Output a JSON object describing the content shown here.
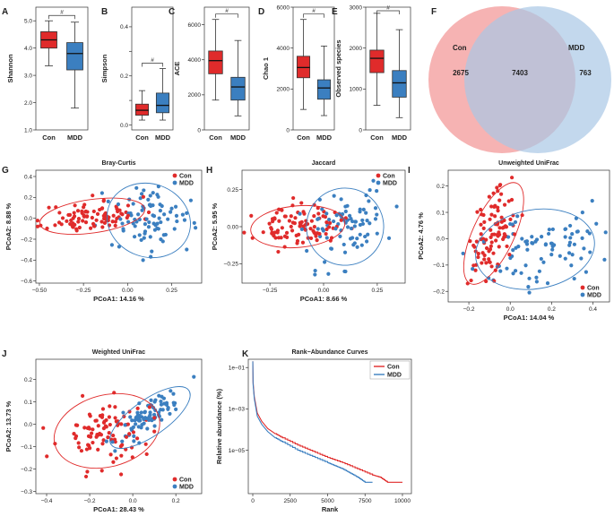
{
  "colors": {
    "con": "#e02b2b",
    "mdd": "#3b7fc0",
    "con_light": "#f4a6a6",
    "mdd_light": "#aac8e6",
    "text": "#222222"
  },
  "groups": [
    "Con",
    "MDD"
  ],
  "chart_data": [
    {
      "id": "A",
      "type": "box",
      "label": "A",
      "ylabel": "Shannon",
      "ylim": [
        1.0,
        5.5
      ],
      "yticks": [
        1.0,
        2.0,
        3.0,
        4.0,
        5.0
      ],
      "ytick_labels": [
        "1.0",
        "2.0",
        "3.0",
        "4.0",
        "5.0"
      ],
      "categories": [
        "Con",
        "MDD"
      ],
      "boxes": [
        {
          "group": "Con",
          "min": 3.35,
          "q1": 4.0,
          "median": 4.3,
          "q3": 4.6,
          "max": 5.0
        },
        {
          "group": "MDD",
          "min": 1.8,
          "q1": 3.2,
          "median": 3.8,
          "q3": 4.2,
          "max": 4.95
        }
      ],
      "significance": "#"
    },
    {
      "id": "B",
      "type": "box",
      "label": "B",
      "ylabel": "Simpson",
      "ylim": [
        -0.02,
        0.48
      ],
      "yticks": [
        0.0,
        0.1,
        0.2,
        0.3,
        0.4
      ],
      "ytick_labels": [
        "0.0",
        "",
        "0.2",
        "",
        "0.4"
      ],
      "categories": [
        "Con",
        "MDD"
      ],
      "boxes": [
        {
          "group": "Con",
          "min": 0.02,
          "q1": 0.04,
          "median": 0.06,
          "q3": 0.085,
          "max": 0.14
        },
        {
          "group": "MDD",
          "min": 0.02,
          "q1": 0.05,
          "median": 0.08,
          "q3": 0.13,
          "max": 0.23
        }
      ],
      "significance": "#"
    },
    {
      "id": "C",
      "type": "box",
      "label": "C",
      "ylabel": "ACE",
      "ylim": [
        0,
        7000
      ],
      "yticks": [
        0,
        2000,
        4000,
        6000
      ],
      "ytick_labels": [
        "0",
        "2000",
        "4000",
        "6000"
      ],
      "categories": [
        "Con",
        "MDD"
      ],
      "boxes": [
        {
          "group": "Con",
          "min": 1700,
          "q1": 3200,
          "median": 3950,
          "q3": 4500,
          "max": 6300
        },
        {
          "group": "MDD",
          "min": 800,
          "q1": 1700,
          "median": 2450,
          "q3": 3000,
          "max": 5100
        }
      ],
      "significance": "#"
    },
    {
      "id": "D",
      "type": "box",
      "label": "D",
      "ylabel": "Chao 1",
      "ylim": [
        0,
        6000
      ],
      "yticks": [
        0,
        2000,
        4000,
        6000
      ],
      "ytick_labels": [
        "0",
        "2000",
        "4000",
        "6000"
      ],
      "categories": [
        "Con",
        "MDD"
      ],
      "boxes": [
        {
          "group": "Con",
          "min": 1000,
          "q1": 2550,
          "median": 3050,
          "q3": 3600,
          "max": 5400
        },
        {
          "group": "MDD",
          "min": 700,
          "q1": 1500,
          "median": 2050,
          "q3": 2450,
          "max": 4100
        }
      ],
      "significance": "#"
    },
    {
      "id": "E",
      "type": "box",
      "label": "E",
      "ylabel": "Observed species",
      "ylim": [
        0,
        3000
      ],
      "yticks": [
        0,
        1000,
        2000,
        3000
      ],
      "ytick_labels": [
        "0",
        "1000",
        "2000",
        "3000"
      ],
      "categories": [
        "Con",
        "MDD"
      ],
      "boxes": [
        {
          "group": "Con",
          "min": 600,
          "q1": 1400,
          "median": 1750,
          "q3": 1950,
          "max": 2850
        },
        {
          "group": "MDD",
          "min": 300,
          "q1": 800,
          "median": 1150,
          "q3": 1450,
          "max": 2450
        }
      ],
      "significance": "#"
    },
    {
      "id": "F",
      "type": "venn",
      "label": "F",
      "sets": [
        {
          "name": "Con",
          "unique": 2675
        },
        {
          "name": "MDD",
          "unique": 763
        }
      ],
      "shared": 7403
    },
    {
      "id": "G",
      "type": "scatter",
      "label": "G",
      "title": "Bray-Curtis",
      "xlabel": "PCoA1:  14.16 %",
      "ylabel": "PCoA2:  8.88 %",
      "xlim": [
        -0.52,
        0.42
      ],
      "ylim": [
        -0.62,
        0.46
      ],
      "xticks": [
        -0.5,
        -0.25,
        0.0,
        0.25
      ],
      "xtick_labels": [
        "−0.50",
        "−0.25",
        "0.00",
        "0.25"
      ],
      "yticks": [
        -0.6,
        -0.4,
        -0.2,
        0.0,
        0.2,
        0.4
      ],
      "ytick_labels": [
        "−0.6",
        "−0.4",
        "−0.2",
        "0.0",
        "0.2",
        "0.4"
      ],
      "legend": "top-right",
      "seed": 11,
      "groups": [
        {
          "group": "Con",
          "cx": -0.2,
          "cy": 0.02,
          "rx": 0.3,
          "ry": 0.16,
          "rot": 8,
          "n": 95,
          "spread": 0.45
        },
        {
          "group": "MDD",
          "cx": 0.12,
          "cy": -0.02,
          "rx": 0.24,
          "ry": 0.35,
          "rot": -20,
          "n": 85,
          "spread": 0.5
        }
      ]
    },
    {
      "id": "H",
      "type": "scatter",
      "label": "H",
      "title": "Jaccard",
      "xlabel": "PCoA1:  8.66 %",
      "ylabel": "PCoA2:  5.95 %",
      "xlim": [
        -0.38,
        0.38
      ],
      "ylim": [
        -0.38,
        0.38
      ],
      "xticks": [
        -0.25,
        0.0,
        0.25
      ],
      "xtick_labels": [
        "−0.25",
        "0.00",
        "0.25"
      ],
      "yticks": [
        -0.25,
        0.0,
        0.25
      ],
      "ytick_labels": [
        "−0.25",
        "0.00",
        "0.25"
      ],
      "legend": "top-right",
      "seed": 23,
      "groups": [
        {
          "group": "Con",
          "cx": -0.12,
          "cy": 0.0,
          "rx": 0.22,
          "ry": 0.14,
          "rot": 5,
          "n": 95,
          "spread": 0.45
        },
        {
          "group": "MDD",
          "cx": 0.1,
          "cy": 0.0,
          "rx": 0.18,
          "ry": 0.26,
          "rot": -15,
          "n": 85,
          "spread": 0.5
        }
      ]
    },
    {
      "id": "I",
      "type": "scatter",
      "label": "I",
      "title": "Unweighted UniFrac",
      "xlabel": "PCoA1:  14.04 %",
      "ylabel": "PCoA2:  4.76 %",
      "xlim": [
        -0.3,
        0.48
      ],
      "ylim": [
        -0.24,
        0.26
      ],
      "xticks": [
        -0.2,
        0.0,
        0.2,
        0.4
      ],
      "xtick_labels": [
        "−0.2",
        "0.0",
        "0.2",
        "0.4"
      ],
      "yticks": [
        -0.2,
        -0.1,
        0.0,
        0.1,
        0.2
      ],
      "ytick_labels": [
        "−0.2",
        "−0.1",
        "0.0",
        "0.1",
        "0.2"
      ],
      "legend": "bottom-right",
      "seed": 37,
      "groups": [
        {
          "group": "Con",
          "cx": -0.08,
          "cy": 0.02,
          "rx": 0.1,
          "ry": 0.21,
          "rot": -25,
          "n": 95,
          "spread": 0.45
        },
        {
          "group": "MDD",
          "cx": 0.12,
          "cy": -0.04,
          "rx": 0.29,
          "ry": 0.15,
          "rot": 10,
          "n": 85,
          "spread": 0.5
        }
      ]
    },
    {
      "id": "J",
      "type": "scatter",
      "label": "J",
      "title": "Weighted UniFrac",
      "xlabel": "PCoA1:  28.43 %",
      "ylabel": "PCoA2:  13.73 %",
      "xlim": [
        -0.45,
        0.32
      ],
      "ylim": [
        -0.31,
        0.29
      ],
      "xticks": [
        -0.4,
        -0.2,
        0.0,
        0.2
      ],
      "xtick_labels": [
        "−0.4",
        "−0.2",
        "0.0",
        "0.2"
      ],
      "yticks": [
        -0.3,
        -0.2,
        -0.1,
        0.0,
        0.1,
        0.2
      ],
      "ytick_labels": [
        "−0.3",
        "−0.2",
        "−0.1",
        "0.0",
        "0.1",
        "0.2"
      ],
      "legend": "bottom-right",
      "seed": 53,
      "groups": [
        {
          "group": "Con",
          "cx": -0.12,
          "cy": -0.03,
          "rx": 0.25,
          "ry": 0.16,
          "rot": 15,
          "n": 95,
          "spread": 0.45
        },
        {
          "group": "MDD",
          "cx": 0.08,
          "cy": 0.03,
          "rx": 0.22,
          "ry": 0.08,
          "rot": 35,
          "n": 85,
          "spread": 0.45
        }
      ]
    },
    {
      "id": "K",
      "type": "line",
      "label": "K",
      "title": "Rank−Abundance Curves",
      "xlabel": "Rank",
      "ylabel": "Relative abundance (%)",
      "xlim": [
        -300,
        10600
      ],
      "ylim": [
        -7.1,
        -0.6
      ],
      "yscale": "log10",
      "xticks": [
        0,
        2500,
        5000,
        7500,
        10000
      ],
      "xtick_labels": [
        "0",
        "2500",
        "5000",
        "7500",
        "10000"
      ],
      "yticks": [
        -1,
        -3,
        -5
      ],
      "ytick_labels": [
        "1e−01",
        "1e−03",
        "1e−05"
      ],
      "legend": "top-right",
      "series": [
        {
          "name": "Con",
          "x": [
            1,
            20,
            100,
            300,
            600,
            1000,
            1500,
            2000,
            3000,
            4000,
            5000,
            6000,
            7000,
            8000,
            8500,
            9000,
            9400,
            10000
          ],
          "log10y": [
            -0.7,
            -1.7,
            -2.4,
            -3.2,
            -3.6,
            -3.95,
            -4.2,
            -4.4,
            -4.75,
            -5.05,
            -5.35,
            -5.6,
            -5.9,
            -6.2,
            -6.3,
            -6.55,
            -6.55,
            -6.55
          ]
        },
        {
          "name": "MDD",
          "x": [
            1,
            20,
            100,
            300,
            600,
            1000,
            1500,
            2000,
            3000,
            4000,
            5000,
            5500,
            6000,
            6500,
            7000,
            7500,
            8000
          ],
          "log10y": [
            -0.7,
            -1.8,
            -2.5,
            -3.35,
            -3.75,
            -4.1,
            -4.4,
            -4.6,
            -5.0,
            -5.3,
            -5.6,
            -5.75,
            -5.9,
            -6.1,
            -6.3,
            -6.55,
            -6.55
          ]
        }
      ]
    }
  ]
}
